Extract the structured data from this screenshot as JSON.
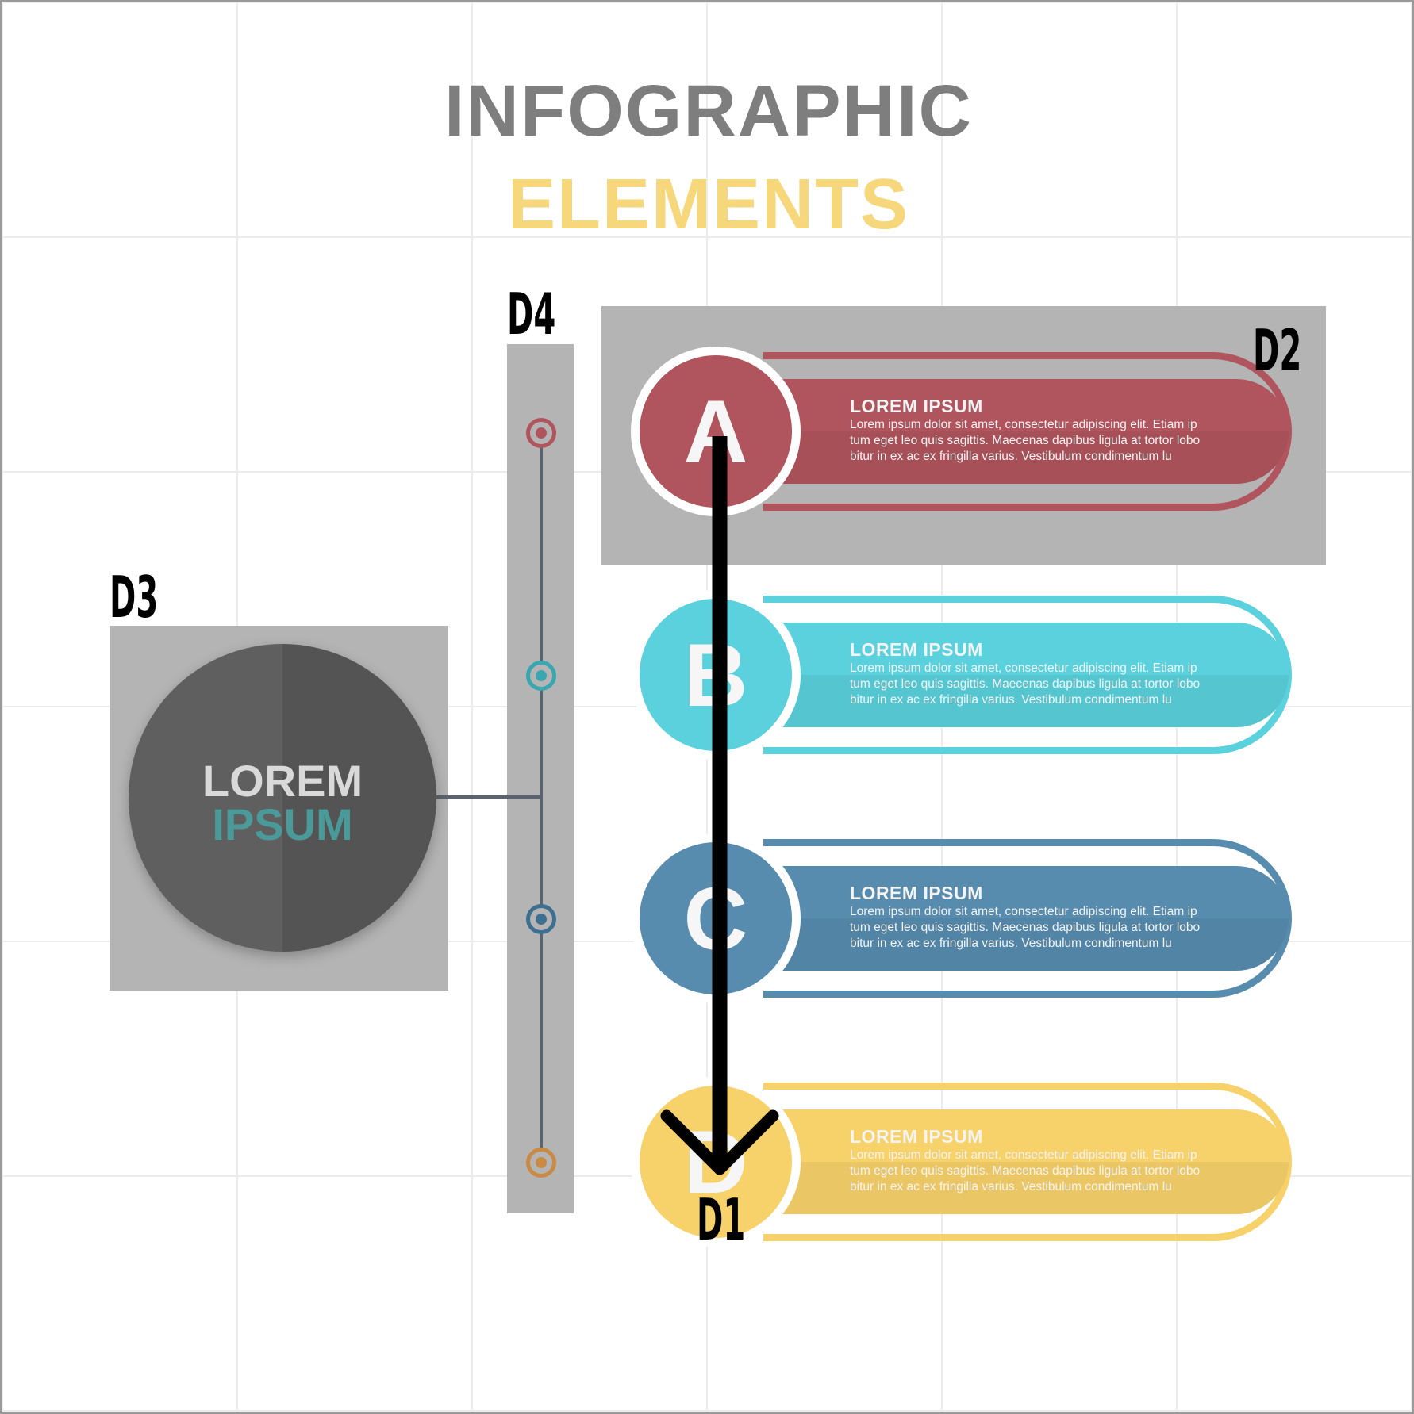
{
  "title": {
    "line1": "INFOGRAPHIC",
    "line2": "ELEMENTS",
    "line1_color": "#7e7e7e",
    "line2_color": "#f6d77c"
  },
  "hub": {
    "word1": "LOREM",
    "word2": "IPSUM",
    "word2_color": "#4a9a9a"
  },
  "items": [
    {
      "letter": "A",
      "heading": "LOREM IPSUM",
      "line1": "Lorem ipsum dolor sit amet, consectetur adipiscing elit. Etiam ip",
      "line2": "tum eget leo quis sagittis. Maecenas dapibus ligula at tortor lobo",
      "line3": "bitur in ex ac ex fringilla varius. Vestibulum condimentum lu",
      "color": "#b0555d"
    },
    {
      "letter": "B",
      "heading": "LOREM IPSUM",
      "line1": "Lorem ipsum dolor sit amet, consectetur adipiscing elit. Etiam ip",
      "line2": "tum eget leo quis sagittis. Maecenas dapibus ligula at tortor lobo",
      "line3": "bitur in ex ac ex fringilla varius. Vestibulum condimentum lu",
      "color": "#5ad1dc"
    },
    {
      "letter": "C",
      "heading": "LOREM IPSUM",
      "line1": "Lorem ipsum dolor sit amet, consectetur adipiscing elit. Etiam ip",
      "line2": "tum eget leo quis sagittis. Maecenas dapibus ligula at tortor lobo",
      "line3": "bitur in ex ac ex fringilla varius. Vestibulum condimentum lu",
      "color": "#578cae"
    },
    {
      "letter": "D",
      "heading": "LOREM IPSUM",
      "line1": "Lorem ipsum dolor sit amet, consectetur adipiscing elit. Etiam ip",
      "line2": "tum eget leo quis sagittis. Maecenas dapibus ligula at tortor lobo",
      "line3": "bitur in ex ac ex fringilla varius. Vestibulum condimentum lu",
      "color": "#f7d16a"
    }
  ],
  "timeline_dot_colors": [
    "#b0555d",
    "#3aa6b0",
    "#3d6f91",
    "#c98a46"
  ],
  "annotations": {
    "d1": "D1",
    "d2": "D2",
    "d3": "D3",
    "d4": "D4"
  }
}
